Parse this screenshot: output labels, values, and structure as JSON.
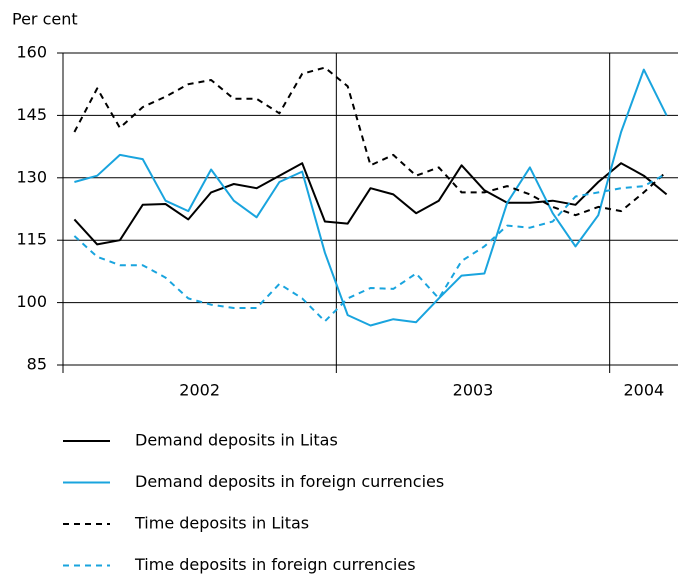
{
  "chart_data": {
    "type": "line",
    "y_label": "Per cent",
    "categories": [
      null,
      null,
      null,
      null,
      null,
      null,
      null,
      null,
      null,
      null,
      null,
      null,
      null,
      null,
      null,
      null,
      null,
      null,
      null,
      null,
      null,
      null,
      null,
      null,
      null,
      null,
      null
    ],
    "periods": [
      {
        "label": "2002",
        "count": 12
      },
      {
        "label": "2003",
        "count": 12
      },
      {
        "label": "2004",
        "count": 3
      }
    ],
    "ylim": [
      85,
      160
    ],
    "yticks": [
      85,
      100,
      115,
      130,
      145,
      160
    ],
    "grid": true,
    "series": [
      {
        "name": "Demand deposits in Litas",
        "color": "#000000",
        "dash": false,
        "values": [
          120,
          114,
          115,
          123.5,
          123.7,
          120,
          126.5,
          128.5,
          127.5,
          130.5,
          133.5,
          119.5,
          119,
          127.5,
          126,
          121.5,
          124.5,
          133,
          127,
          124,
          124,
          124.5,
          123.5,
          129,
          133.5,
          130.5,
          126
        ]
      },
      {
        "name": "Demand deposits in foreign currencies",
        "color": "#19a4de",
        "dash": false,
        "values": [
          129,
          130.5,
          135.5,
          134.5,
          124.5,
          122,
          132,
          124.5,
          120.5,
          129,
          131.5,
          112,
          97,
          94.5,
          96,
          95.3,
          101,
          106.5,
          107,
          124,
          132.5,
          121.5,
          113.5,
          121,
          141,
          156,
          145
        ]
      },
      {
        "name": "Time deposits in Litas",
        "color": "#000000",
        "dash": true,
        "values": [
          141,
          151.5,
          142,
          147,
          149.5,
          152.5,
          153.5,
          149,
          149,
          145.5,
          155,
          156.5,
          152,
          133,
          135.5,
          130.5,
          132.5,
          126.5,
          126.5,
          128,
          126,
          123,
          121,
          123,
          122,
          126.5,
          131.5
        ]
      },
      {
        "name": "Time deposits in foreign currencies",
        "color": "#19a4de",
        "dash": true,
        "values": [
          116,
          111,
          109,
          109,
          106,
          101,
          99.5,
          98.7,
          98.7,
          104.5,
          101,
          95.5,
          101,
          103.5,
          103.3,
          107,
          101,
          110,
          113.5,
          118.5,
          118,
          119.5,
          125.5,
          126.5,
          127.5,
          128,
          131
        ]
      }
    ]
  }
}
